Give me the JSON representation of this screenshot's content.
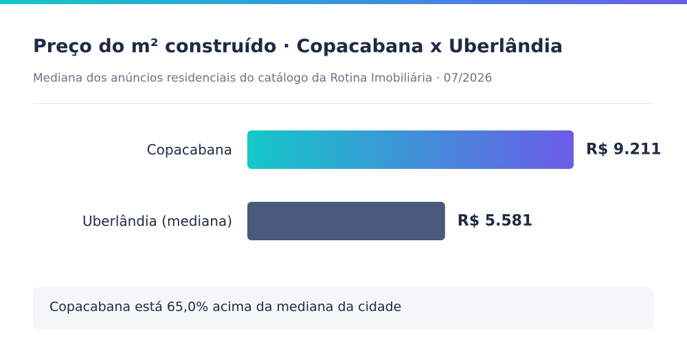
{
  "colors": {
    "accent_start": "#14c8c8",
    "accent_end": "#6b5ce7",
    "neutral_bar": "#4a5a7c",
    "text": "#1f2a44"
  },
  "chart_data": {
    "type": "bar",
    "orientation": "horizontal",
    "title": "Preço do m² construído · Copacabana x Uberlândia",
    "subtitle": "Mediana dos anúncios residenciais do catálogo da Rotina Imobiliária · 07/2026",
    "categories": [
      "Copacabana",
      "Uberlândia (mediana)"
    ],
    "values": [
      9211,
      5581
    ],
    "value_labels": [
      "R$ 9.211",
      "R$ 5.581"
    ],
    "bar_styles": [
      "gradient",
      "solid"
    ],
    "grid": false,
    "note": "Copacabana está 65,0% acima da mediana da cidade"
  }
}
